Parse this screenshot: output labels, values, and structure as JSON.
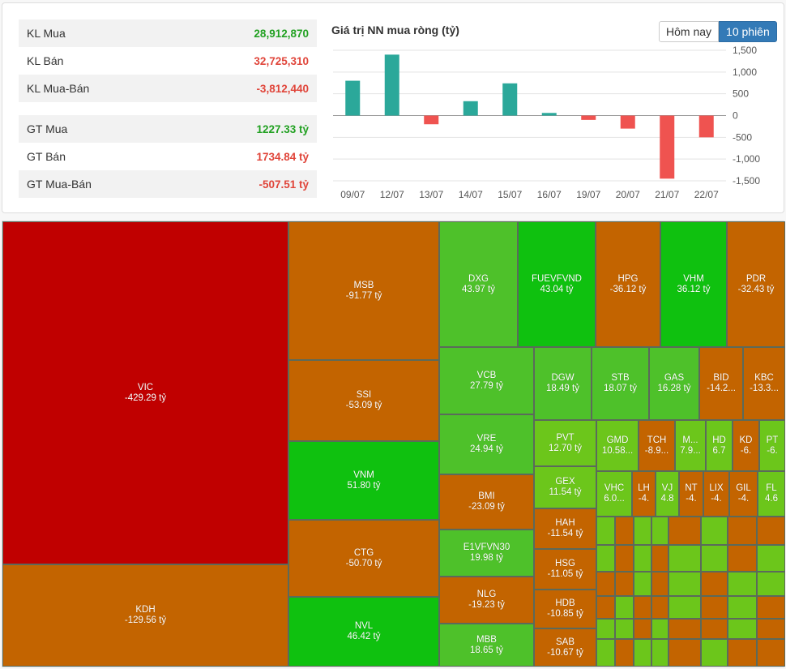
{
  "stats": [
    {
      "label": "KL Mua",
      "value": "28,912,870",
      "tone": "pos"
    },
    {
      "label": "KL Bán",
      "value": "32,725,310",
      "tone": "neg"
    },
    {
      "label": "KL Mua-Bán",
      "value": "-3,812,440",
      "tone": "neg"
    },
    {
      "label": "GT Mua",
      "value": "1227.33 tỷ",
      "tone": "pos"
    },
    {
      "label": "GT Bán",
      "value": "1734.84 tỷ",
      "tone": "neg"
    },
    {
      "label": "GT Mua-Bán",
      "value": "-507.51 tỷ",
      "tone": "neg"
    }
  ],
  "chart_title": "Giá trị NN mua ròng (tỷ)",
  "buttons": {
    "today": "Hôm nay",
    "ten": "10 phiên"
  },
  "colors": {
    "pos_bar": "#2ba89a",
    "neg_bar": "#ef5350",
    "pos_text": "#22a122",
    "neg_text": "#e0453a"
  },
  "chart_data": {
    "type": "bar",
    "title": "Giá trị NN mua ròng (tỷ)",
    "categories": [
      "09/07",
      "12/07",
      "13/07",
      "14/07",
      "15/07",
      "16/07",
      "19/07",
      "20/07",
      "21/07",
      "22/07"
    ],
    "values": [
      800,
      1400,
      -200,
      330,
      740,
      60,
      -100,
      -300,
      -1450,
      -500
    ],
    "ylim": [
      -1500,
      1500
    ],
    "yticks": [
      1500,
      1000,
      500,
      0,
      -500,
      -1000,
      -1500
    ],
    "ytick_labels": [
      "1,500",
      "1,000",
      "500",
      "0",
      "-500",
      "-1,000",
      "-1,500"
    ],
    "axis_side": "right",
    "grid": true
  },
  "treemap": [
    {
      "ticker": "VIC",
      "value": "-429.29 tỷ"
    },
    {
      "ticker": "KDH",
      "value": "-129.56 tỷ"
    },
    {
      "ticker": "MSB",
      "value": "-91.77 tỷ"
    },
    {
      "ticker": "SSI",
      "value": "-53.09 tỷ"
    },
    {
      "ticker": "VNM",
      "value": "51.80 tỷ"
    },
    {
      "ticker": "CTG",
      "value": "-50.70 tỷ"
    },
    {
      "ticker": "NVL",
      "value": "46.42 tỷ"
    },
    {
      "ticker": "DXG",
      "value": "43.97 tỷ"
    },
    {
      "ticker": "FUEVFVND",
      "value": "43.04 tỷ"
    },
    {
      "ticker": "HPG",
      "value": "-36.12 tỷ"
    },
    {
      "ticker": "VHM",
      "value": "36.12 tỷ"
    },
    {
      "ticker": "PDR",
      "value": "-32.43 tỷ"
    },
    {
      "ticker": "VCB",
      "value": "27.79 tỷ"
    },
    {
      "ticker": "DGW",
      "value": "18.49 tỷ"
    },
    {
      "ticker": "STB",
      "value": "18.07 tỷ"
    },
    {
      "ticker": "GAS",
      "value": "16.28 tỷ"
    },
    {
      "ticker": "BID",
      "value": "-14.2..."
    },
    {
      "ticker": "KBC",
      "value": "-13.3..."
    },
    {
      "ticker": "VRE",
      "value": "24.94 tỷ"
    },
    {
      "ticker": "PVT",
      "value": "12.70 tỷ"
    },
    {
      "ticker": "GMD",
      "value": "10.58..."
    },
    {
      "ticker": "TCH",
      "value": "-8.9..."
    },
    {
      "ticker": "M...",
      "value": "7.9..."
    },
    {
      "ticker": "HD",
      "value": "6.7"
    },
    {
      "ticker": "KD",
      "value": "-6."
    },
    {
      "ticker": "PT",
      "value": "-6."
    },
    {
      "ticker": "BMI",
      "value": "-23.09 tỷ"
    },
    {
      "ticker": "GEX",
      "value": "11.54 tỷ"
    },
    {
      "ticker": "VHC",
      "value": "6.0..."
    },
    {
      "ticker": "LH",
      "value": "-4."
    },
    {
      "ticker": "VJ",
      "value": "4.8"
    },
    {
      "ticker": "NT",
      "value": "-4."
    },
    {
      "ticker": "LIX",
      "value": "-4."
    },
    {
      "ticker": "GIL",
      "value": "-4."
    },
    {
      "ticker": "FL",
      "value": "4.6"
    },
    {
      "ticker": "E1VFVN30",
      "value": "19.98 tỷ"
    },
    {
      "ticker": "HAH",
      "value": "-11.54 tỷ"
    },
    {
      "ticker": "HSG",
      "value": "-11.05 tỷ"
    },
    {
      "ticker": "NLG",
      "value": "-19.23 tỷ"
    },
    {
      "ticker": "HDB",
      "value": "-10.85 tỷ"
    },
    {
      "ticker": "MBB",
      "value": "18.65 tỷ"
    },
    {
      "ticker": "SAB",
      "value": "-10.67 tỷ"
    }
  ]
}
